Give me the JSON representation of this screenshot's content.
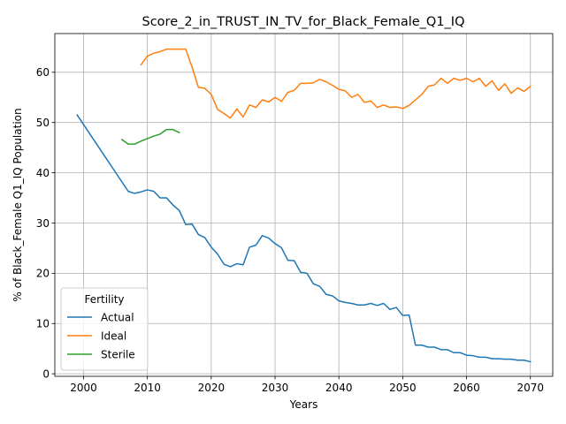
{
  "chart_data": {
    "type": "line",
    "title": "Score_2_in_TRUST_IN_TV_for_Black_Female_Q1_IQ",
    "xlabel": "Years",
    "ylabel": "% of Black_Female Q1_IQ Population",
    "xlim": [
      1995.5,
      2073.5
    ],
    "ylim": [
      -0.5,
      67.7
    ],
    "xticks": [
      2000,
      2010,
      2020,
      2030,
      2040,
      2050,
      2060,
      2070
    ],
    "yticks": [
      0,
      10,
      20,
      30,
      40,
      50,
      60
    ],
    "grid": true,
    "legend": {
      "title": "Fertility",
      "placement": "lower-left"
    },
    "series": [
      {
        "name": "Actual",
        "color": "#1f77b4",
        "x": [
          1999,
          2000,
          2001,
          2002,
          2003,
          2004,
          2005,
          2006,
          2007,
          2008,
          2009,
          2010,
          2011,
          2012,
          2013,
          2014,
          2015,
          2016,
          2017,
          2018,
          2019,
          2020,
          2021,
          2022,
          2023,
          2024,
          2025,
          2026,
          2027,
          2028,
          2029,
          2030,
          2031,
          2032,
          2033,
          2034,
          2035,
          2036,
          2037,
          2038,
          2039,
          2040,
          2041,
          2042,
          2043,
          2044,
          2045,
          2046,
          2047,
          2048,
          2049,
          2050,
          2051,
          2052,
          2053,
          2054,
          2055,
          2056,
          2057,
          2058,
          2059,
          2060,
          2061,
          2062,
          2063,
          2064,
          2065,
          2066,
          2067,
          2068,
          2069,
          2070
        ],
        "values": [
          51.5,
          49.6,
          47.7,
          45.8,
          43.9,
          42.0,
          40.1,
          38.2,
          36.3,
          35.9,
          36.2,
          36.6,
          36.3,
          35.0,
          35.0,
          33.6,
          32.5,
          29.7,
          29.8,
          27.7,
          27.1,
          25.2,
          23.8,
          21.8,
          21.3,
          21.9,
          21.7,
          25.2,
          25.6,
          27.5,
          27.0,
          25.9,
          25.1,
          22.6,
          22.5,
          20.2,
          20.0,
          17.9,
          17.4,
          15.8,
          15.5,
          14.5,
          14.2,
          14.0,
          13.7,
          13.7,
          14.0,
          13.6,
          14.0,
          12.8,
          13.2,
          11.6,
          11.7,
          5.7,
          5.7,
          5.3,
          5.3,
          4.8,
          4.8,
          4.2,
          4.2,
          3.7,
          3.6,
          3.3,
          3.3,
          3.0,
          3.0,
          2.9,
          2.9,
          2.7,
          2.7,
          2.4
        ]
      },
      {
        "name": "Ideal",
        "color": "#ff7f0e",
        "x": [
          2009,
          2010,
          2011,
          2012,
          2013,
          2014,
          2015,
          2016,
          2017,
          2018,
          2019,
          2020,
          2021,
          2022,
          2023,
          2024,
          2025,
          2026,
          2027,
          2028,
          2029,
          2030,
          2031,
          2032,
          2033,
          2034,
          2035,
          2036,
          2037,
          2038,
          2039,
          2040,
          2041,
          2042,
          2043,
          2044,
          2045,
          2046,
          2047,
          2048,
          2049,
          2050,
          2051,
          2052,
          2053,
          2054,
          2055,
          2056,
          2057,
          2058,
          2059,
          2060,
          2061,
          2062,
          2063,
          2064,
          2065,
          2066,
          2067,
          2068,
          2069,
          2070
        ],
        "values": [
          61.5,
          63.2,
          63.8,
          64.1,
          64.6,
          64.6,
          64.6,
          64.6,
          61.0,
          57.0,
          56.8,
          55.6,
          52.6,
          51.8,
          50.9,
          52.7,
          51.1,
          53.5,
          53.0,
          54.5,
          54.1,
          55.0,
          54.2,
          56.0,
          56.4,
          57.8,
          57.8,
          57.9,
          58.6,
          58.1,
          57.4,
          56.6,
          56.3,
          55.0,
          55.6,
          54.0,
          54.3,
          53.0,
          53.5,
          53.0,
          53.1,
          52.8,
          53.4,
          54.5,
          55.6,
          57.2,
          57.5,
          58.8,
          57.8,
          58.8,
          58.4,
          58.8,
          58.1,
          58.8,
          57.2,
          58.3,
          56.4,
          57.7,
          55.8,
          56.9,
          56.2,
          57.2
        ]
      },
      {
        "name": "Sterile",
        "color": "#2ca02c",
        "x": [
          2006,
          2007,
          2008,
          2009,
          2010,
          2011,
          2012,
          2013,
          2014,
          2015
        ],
        "values": [
          46.6,
          45.7,
          45.7,
          46.3,
          46.8,
          47.3,
          47.7,
          48.6,
          48.6,
          48.0
        ]
      }
    ]
  }
}
